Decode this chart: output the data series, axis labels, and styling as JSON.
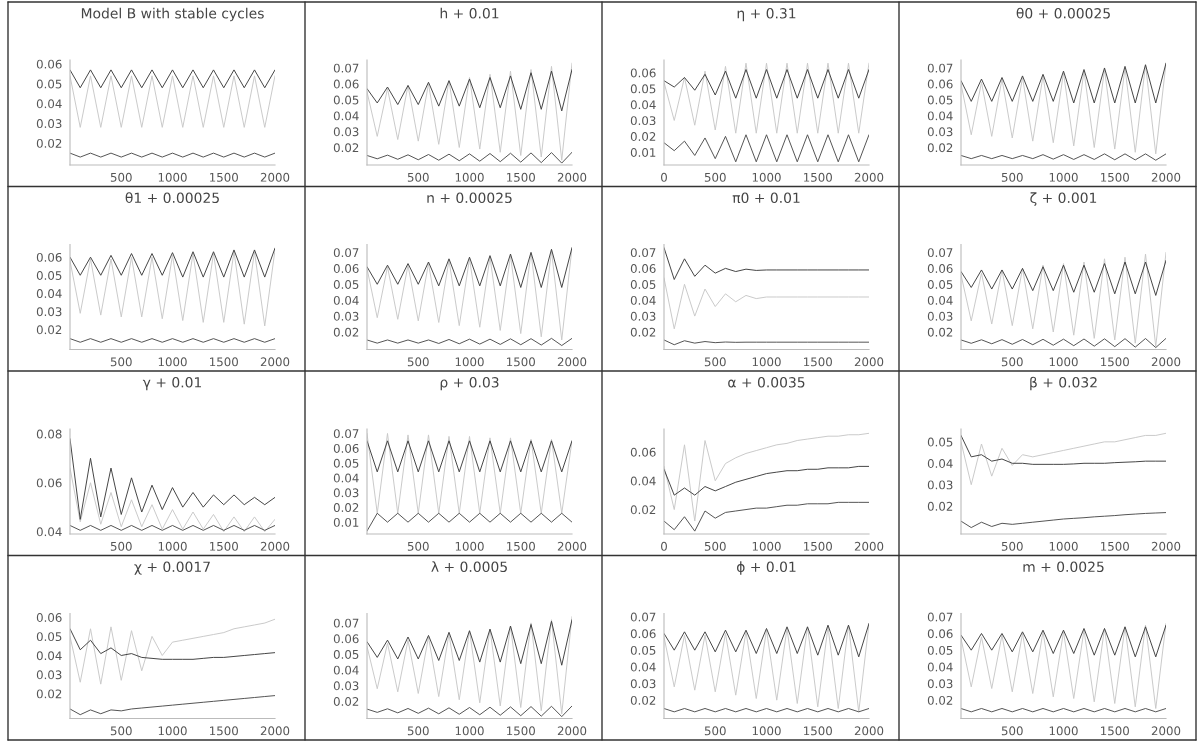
{
  "chart_data": [
    {
      "type": "line",
      "title": "Model B with stable cycles",
      "x": [
        0,
        100,
        200,
        300,
        400,
        500,
        600,
        700,
        800,
        900,
        1000,
        1100,
        1200,
        1300,
        1400,
        1500,
        1600,
        1700,
        1800,
        1900,
        2000
      ],
      "xlim": [
        0,
        2000
      ],
      "ylim": [
        0.009,
        0.062
      ],
      "xticks": [
        500,
        1000,
        1500,
        2000
      ],
      "yticks": [
        0.02,
        0.03,
        0.04,
        0.05,
        0.06
      ],
      "series": [
        {
          "color": "#c8c8c8",
          "values": [
            0.054,
            0.028,
            0.054,
            0.028,
            0.054,
            0.028,
            0.054,
            0.028,
            0.054,
            0.028,
            0.054,
            0.028,
            0.054,
            0.028,
            0.054,
            0.028,
            0.054,
            0.028,
            0.054,
            0.028,
            0.054
          ]
        },
        {
          "color": "#404040",
          "values": [
            0.057,
            0.048,
            0.057,
            0.048,
            0.057,
            0.048,
            0.057,
            0.048,
            0.057,
            0.048,
            0.057,
            0.048,
            0.057,
            0.048,
            0.057,
            0.048,
            0.057,
            0.048,
            0.057,
            0.048,
            0.057
          ]
        },
        {
          "color": "#505050",
          "values": [
            0.015,
            0.013,
            0.015,
            0.013,
            0.015,
            0.013,
            0.015,
            0.013,
            0.015,
            0.013,
            0.015,
            0.013,
            0.015,
            0.013,
            0.015,
            0.013,
            0.015,
            0.013,
            0.015,
            0.013,
            0.015
          ]
        }
      ]
    },
    {
      "type": "line",
      "title": "h + 0.01",
      "x": [
        0,
        100,
        200,
        300,
        400,
        500,
        600,
        700,
        800,
        900,
        1000,
        1100,
        1200,
        1300,
        1400,
        1500,
        1600,
        1700,
        1800,
        1900,
        2000
      ],
      "xlim": [
        0,
        2000
      ],
      "ylim": [
        0.009,
        0.075
      ],
      "xticks": [
        500,
        1000,
        1500,
        2000
      ],
      "yticks": [
        0.02,
        0.03,
        0.04,
        0.05,
        0.06,
        0.07
      ],
      "series": [
        {
          "color": "#c8c8c8",
          "values": [
            0.055,
            0.027,
            0.057,
            0.025,
            0.059,
            0.024,
            0.06,
            0.022,
            0.062,
            0.02,
            0.064,
            0.019,
            0.066,
            0.017,
            0.068,
            0.015,
            0.069,
            0.014,
            0.071,
            0.012,
            0.073
          ]
        },
        {
          "color": "#404040",
          "values": [
            0.057,
            0.048,
            0.058,
            0.047,
            0.059,
            0.047,
            0.061,
            0.046,
            0.062,
            0.046,
            0.063,
            0.045,
            0.064,
            0.045,
            0.065,
            0.044,
            0.067,
            0.044,
            0.068,
            0.043,
            0.069
          ]
        },
        {
          "color": "#505050",
          "values": [
            0.015,
            0.0129,
            0.0152,
            0.0126,
            0.0154,
            0.0123,
            0.0156,
            0.012,
            0.0158,
            0.0117,
            0.016,
            0.0114,
            0.0162,
            0.0111,
            0.0164,
            0.0108,
            0.0166,
            0.0105,
            0.0168,
            0.0102,
            0.017
          ]
        }
      ]
    },
    {
      "type": "line",
      "title": "η + 0.31",
      "x": [
        0,
        100,
        200,
        300,
        400,
        500,
        600,
        700,
        800,
        900,
        1000,
        1100,
        1200,
        1300,
        1400,
        1500,
        1600,
        1700,
        1800,
        1900,
        2000
      ],
      "xlim": [
        0,
        2000
      ],
      "ylim": [
        0.002,
        0.068
      ],
      "xticks": [
        0,
        500,
        1000,
        1500,
        2000
      ],
      "yticks": [
        0.01,
        0.02,
        0.03,
        0.04,
        0.05,
        0.06
      ],
      "series": [
        {
          "color": "#c8c8c8",
          "values": [
            0.054,
            0.03,
            0.057,
            0.027,
            0.061,
            0.024,
            0.064,
            0.022,
            0.066,
            0.022,
            0.066,
            0.022,
            0.066,
            0.022,
            0.066,
            0.022,
            0.066,
            0.022,
            0.066,
            0.022,
            0.066
          ]
        },
        {
          "color": "#404040",
          "values": [
            0.055,
            0.051,
            0.057,
            0.049,
            0.059,
            0.046,
            0.061,
            0.044,
            0.062,
            0.044,
            0.062,
            0.044,
            0.062,
            0.044,
            0.062,
            0.044,
            0.062,
            0.044,
            0.062,
            0.044,
            0.062
          ]
        },
        {
          "color": "#505050",
          "values": [
            0.016,
            0.011,
            0.017,
            0.008,
            0.019,
            0.006,
            0.02,
            0.004,
            0.021,
            0.004,
            0.021,
            0.004,
            0.021,
            0.004,
            0.021,
            0.004,
            0.021,
            0.004,
            0.021,
            0.004,
            0.021
          ]
        }
      ]
    },
    {
      "type": "line",
      "title": "θ0 + 0.00025",
      "x": [
        0,
        100,
        200,
        300,
        400,
        500,
        600,
        700,
        800,
        900,
        1000,
        1100,
        1200,
        1300,
        1400,
        1500,
        1600,
        1700,
        1800,
        1900,
        2000
      ],
      "xlim": [
        0,
        2000
      ],
      "ylim": [
        0.009,
        0.075
      ],
      "xticks": [
        500,
        1000,
        1500,
        2000
      ],
      "yticks": [
        0.02,
        0.03,
        0.04,
        0.05,
        0.06,
        0.07
      ],
      "series": [
        {
          "color": "#c8c8c8",
          "values": [
            0.06,
            0.028,
            0.061,
            0.027,
            0.063,
            0.026,
            0.064,
            0.024,
            0.065,
            0.023,
            0.067,
            0.021,
            0.068,
            0.02,
            0.069,
            0.019,
            0.07,
            0.017,
            0.072,
            0.016,
            0.073
          ]
        },
        {
          "color": "#404040",
          "values": [
            0.062,
            0.049,
            0.063,
            0.049,
            0.064,
            0.049,
            0.065,
            0.049,
            0.066,
            0.049,
            0.068,
            0.048,
            0.069,
            0.048,
            0.07,
            0.048,
            0.071,
            0.048,
            0.072,
            0.048,
            0.073
          ]
        },
        {
          "color": "#505050",
          "values": [
            0.015,
            0.013,
            0.015,
            0.013,
            0.015,
            0.013,
            0.015,
            0.013,
            0.0155,
            0.0127,
            0.0155,
            0.0125,
            0.0155,
            0.0125,
            0.016,
            0.0123,
            0.016,
            0.0122,
            0.016,
            0.012,
            0.016
          ]
        }
      ]
    },
    {
      "type": "line",
      "title": "θ1 + 0.00025",
      "x": [
        0,
        100,
        200,
        300,
        400,
        500,
        600,
        700,
        800,
        900,
        1000,
        1100,
        1200,
        1300,
        1400,
        1500,
        1600,
        1700,
        1800,
        1900,
        2000
      ],
      "xlim": [
        0,
        2000
      ],
      "ylim": [
        0.009,
        0.067
      ],
      "xticks": [
        500,
        1000,
        1500,
        2000
      ],
      "yticks": [
        0.02,
        0.03,
        0.04,
        0.05,
        0.06
      ],
      "series": [
        {
          "color": "#c8c8c8",
          "values": [
            0.058,
            0.029,
            0.059,
            0.028,
            0.059,
            0.027,
            0.06,
            0.027,
            0.06,
            0.026,
            0.061,
            0.025,
            0.062,
            0.024,
            0.062,
            0.024,
            0.063,
            0.023,
            0.063,
            0.022,
            0.064
          ]
        },
        {
          "color": "#404040",
          "values": [
            0.06,
            0.05,
            0.06,
            0.05,
            0.061,
            0.05,
            0.062,
            0.05,
            0.062,
            0.05,
            0.0625,
            0.049,
            0.063,
            0.049,
            0.063,
            0.049,
            0.064,
            0.049,
            0.064,
            0.049,
            0.065
          ]
        },
        {
          "color": "#505050",
          "values": [
            0.015,
            0.013,
            0.015,
            0.013,
            0.015,
            0.013,
            0.015,
            0.013,
            0.015,
            0.013,
            0.015,
            0.013,
            0.015,
            0.013,
            0.015,
            0.013,
            0.015,
            0.013,
            0.015,
            0.013,
            0.015
          ]
        }
      ]
    },
    {
      "type": "line",
      "title": "n + 0.00025",
      "x": [
        0,
        100,
        200,
        300,
        400,
        500,
        600,
        700,
        800,
        900,
        1000,
        1100,
        1200,
        1300,
        1400,
        1500,
        1600,
        1700,
        1800,
        1900,
        2000
      ],
      "xlim": [
        0,
        2000
      ],
      "ylim": [
        0.009,
        0.075
      ],
      "xticks": [
        500,
        1000,
        1500,
        2000
      ],
      "yticks": [
        0.02,
        0.03,
        0.04,
        0.05,
        0.06,
        0.07
      ],
      "series": [
        {
          "color": "#c8c8c8",
          "values": [
            0.06,
            0.029,
            0.061,
            0.028,
            0.062,
            0.027,
            0.063,
            0.026,
            0.065,
            0.024,
            0.066,
            0.023,
            0.067,
            0.021,
            0.068,
            0.019,
            0.07,
            0.017,
            0.071,
            0.015,
            0.073
          ]
        },
        {
          "color": "#404040",
          "values": [
            0.061,
            0.05,
            0.062,
            0.05,
            0.063,
            0.05,
            0.064,
            0.049,
            0.066,
            0.049,
            0.067,
            0.049,
            0.068,
            0.049,
            0.069,
            0.048,
            0.07,
            0.048,
            0.072,
            0.048,
            0.073
          ]
        },
        {
          "color": "#505050",
          "values": [
            0.015,
            0.013,
            0.015,
            0.013,
            0.015,
            0.013,
            0.015,
            0.0128,
            0.0153,
            0.0126,
            0.0155,
            0.0124,
            0.0155,
            0.0122,
            0.0157,
            0.012,
            0.0158,
            0.0118,
            0.016,
            0.0115,
            0.016
          ]
        }
      ]
    },
    {
      "type": "line",
      "title": "π0 + 0.01",
      "x": [
        0,
        100,
        200,
        300,
        400,
        500,
        600,
        700,
        800,
        900,
        1000,
        1100,
        1200,
        1300,
        1400,
        1500,
        1600,
        1700,
        1800,
        1900,
        2000
      ],
      "xlim": [
        0,
        2000
      ],
      "ylim": [
        0.009,
        0.075
      ],
      "xticks": [
        500,
        1000,
        1500,
        2000
      ],
      "yticks": [
        0.02,
        0.03,
        0.04,
        0.05,
        0.06,
        0.07
      ],
      "series": [
        {
          "color": "#c8c8c8",
          "values": [
            0.054,
            0.022,
            0.05,
            0.03,
            0.047,
            0.036,
            0.044,
            0.039,
            0.043,
            0.041,
            0.042,
            0.042,
            0.042,
            0.042,
            0.042,
            0.042,
            0.042,
            0.042,
            0.042,
            0.042,
            0.042
          ]
        },
        {
          "color": "#404040",
          "values": [
            0.073,
            0.053,
            0.066,
            0.055,
            0.062,
            0.057,
            0.06,
            0.058,
            0.0595,
            0.0587,
            0.059,
            0.059,
            0.059,
            0.059,
            0.059,
            0.059,
            0.059,
            0.059,
            0.059,
            0.059,
            0.059
          ]
        },
        {
          "color": "#505050",
          "values": [
            0.015,
            0.012,
            0.0145,
            0.013,
            0.014,
            0.0133,
            0.0137,
            0.0135,
            0.0136,
            0.0136,
            0.0136,
            0.0136,
            0.0136,
            0.0136,
            0.0136,
            0.0136,
            0.0136,
            0.0136,
            0.0136,
            0.0136,
            0.0136
          ]
        }
      ]
    },
    {
      "type": "line",
      "title": "ζ + 0.001",
      "x": [
        0,
        100,
        200,
        300,
        400,
        500,
        600,
        700,
        800,
        900,
        1000,
        1100,
        1200,
        1300,
        1400,
        1500,
        1600,
        1700,
        1800,
        1900,
        2000
      ],
      "xlim": [
        0,
        2000
      ],
      "ylim": [
        0.009,
        0.075
      ],
      "xticks": [
        500,
        1000,
        1500,
        2000
      ],
      "yticks": [
        0.02,
        0.03,
        0.04,
        0.05,
        0.06,
        0.07
      ],
      "series": [
        {
          "color": "#c8c8c8",
          "values": [
            0.056,
            0.027,
            0.057,
            0.025,
            0.059,
            0.024,
            0.06,
            0.022,
            0.062,
            0.02,
            0.063,
            0.018,
            0.064,
            0.016,
            0.066,
            0.015,
            0.067,
            0.013,
            0.069,
            0.011,
            0.07
          ]
        },
        {
          "color": "#404040",
          "values": [
            0.058,
            0.048,
            0.059,
            0.047,
            0.059,
            0.047,
            0.06,
            0.046,
            0.061,
            0.046,
            0.062,
            0.045,
            0.062,
            0.045,
            0.063,
            0.044,
            0.064,
            0.044,
            0.064,
            0.043,
            0.065
          ]
        },
        {
          "color": "#505050",
          "values": [
            0.015,
            0.0129,
            0.0151,
            0.0126,
            0.0152,
            0.0123,
            0.0153,
            0.012,
            0.0154,
            0.0117,
            0.0155,
            0.0114,
            0.0156,
            0.0111,
            0.0157,
            0.0108,
            0.0158,
            0.0105,
            0.0159,
            0.0102,
            0.016
          ]
        }
      ]
    },
    {
      "type": "line",
      "title": "γ + 0.01",
      "x": [
        0,
        100,
        200,
        300,
        400,
        500,
        600,
        700,
        800,
        900,
        1000,
        1100,
        1200,
        1300,
        1400,
        1500,
        1600,
        1700,
        1800,
        1900,
        2000
      ],
      "xlim": [
        0,
        2000
      ],
      "ylim": [
        0.039,
        0.082
      ],
      "xticks": [
        500,
        1000,
        1500,
        2000
      ],
      "yticks": [
        0.04,
        0.06,
        0.08
      ],
      "series": [
        {
          "color": "#c8c8c8",
          "values": [
            0.066,
            0.044,
            0.06,
            0.043,
            0.056,
            0.042,
            0.053,
            0.042,
            0.051,
            0.041,
            0.049,
            0.041,
            0.048,
            0.041,
            0.047,
            0.04,
            0.046,
            0.04,
            0.046,
            0.04,
            0.045
          ]
        },
        {
          "color": "#404040",
          "values": [
            0.078,
            0.045,
            0.07,
            0.046,
            0.066,
            0.047,
            0.062,
            0.048,
            0.059,
            0.049,
            0.058,
            0.05,
            0.056,
            0.05,
            0.055,
            0.051,
            0.055,
            0.051,
            0.054,
            0.051,
            0.054
          ]
        },
        {
          "color": "#505050",
          "values": [
            0.0425,
            0.0405,
            0.0425,
            0.0405,
            0.0425,
            0.0405,
            0.0425,
            0.0405,
            0.0425,
            0.0405,
            0.0425,
            0.0405,
            0.0425,
            0.0405,
            0.0425,
            0.0405,
            0.0425,
            0.0405,
            0.0425,
            0.0405,
            0.0425
          ]
        }
      ]
    },
    {
      "type": "line",
      "title": "ρ + 0.03",
      "x": [
        0,
        100,
        200,
        300,
        400,
        500,
        600,
        700,
        800,
        900,
        1000,
        1100,
        1200,
        1300,
        1400,
        1500,
        1600,
        1700,
        1800,
        1900,
        2000
      ],
      "xlim": [
        0,
        2000
      ],
      "ylim": [
        0.002,
        0.073
      ],
      "xticks": [
        500,
        1000,
        1500,
        2000
      ],
      "yticks": [
        0.01,
        0.02,
        0.03,
        0.04,
        0.05,
        0.06,
        0.07
      ],
      "series": [
        {
          "color": "#c8c8c8",
          "values": [
            0.07,
            0.016,
            0.07,
            0.016,
            0.069,
            0.016,
            0.069,
            0.016,
            0.068,
            0.016,
            0.068,
            0.016,
            0.067,
            0.016,
            0.067,
            0.016,
            0.066,
            0.016,
            0.066,
            0.016,
            0.065
          ]
        },
        {
          "color": "#404040",
          "values": [
            0.065,
            0.044,
            0.065,
            0.044,
            0.065,
            0.044,
            0.065,
            0.044,
            0.065,
            0.044,
            0.065,
            0.044,
            0.065,
            0.044,
            0.065,
            0.044,
            0.065,
            0.044,
            0.065,
            0.044,
            0.065
          ]
        },
        {
          "color": "#505050",
          "values": [
            0.004,
            0.016,
            0.01,
            0.016,
            0.01,
            0.016,
            0.01,
            0.016,
            0.01,
            0.016,
            0.01,
            0.016,
            0.01,
            0.016,
            0.01,
            0.016,
            0.01,
            0.016,
            0.01,
            0.016,
            0.01
          ]
        }
      ]
    },
    {
      "type": "line",
      "title": "α + 0.0035",
      "x": [
        0,
        100,
        200,
        300,
        400,
        500,
        600,
        700,
        800,
        900,
        1000,
        1100,
        1200,
        1300,
        1400,
        1500,
        1600,
        1700,
        1800,
        1900,
        2000
      ],
      "xlim": [
        0,
        2000
      ],
      "ylim": [
        0.003,
        0.076
      ],
      "xticks": [
        0,
        500,
        1000,
        1500,
        2000
      ],
      "yticks": [
        0.02,
        0.04,
        0.06
      ],
      "series": [
        {
          "color": "#c8c8c8",
          "values": [
            0.05,
            0.02,
            0.065,
            0.012,
            0.068,
            0.04,
            0.052,
            0.056,
            0.059,
            0.061,
            0.063,
            0.065,
            0.066,
            0.068,
            0.069,
            0.07,
            0.071,
            0.071,
            0.072,
            0.072,
            0.073
          ]
        },
        {
          "color": "#404040",
          "values": [
            0.048,
            0.03,
            0.035,
            0.03,
            0.036,
            0.033,
            0.036,
            0.039,
            0.041,
            0.043,
            0.045,
            0.046,
            0.047,
            0.047,
            0.048,
            0.048,
            0.049,
            0.049,
            0.049,
            0.05,
            0.05
          ]
        },
        {
          "color": "#505050",
          "values": [
            0.012,
            0.006,
            0.015,
            0.005,
            0.019,
            0.014,
            0.018,
            0.019,
            0.02,
            0.021,
            0.021,
            0.022,
            0.023,
            0.023,
            0.024,
            0.024,
            0.024,
            0.025,
            0.025,
            0.025,
            0.025
          ]
        }
      ]
    },
    {
      "type": "line",
      "title": "β + 0.032",
      "x": [
        0,
        100,
        200,
        300,
        400,
        500,
        600,
        700,
        800,
        900,
        1000,
        1100,
        1200,
        1300,
        1400,
        1500,
        1600,
        1700,
        1800,
        1900,
        2000
      ],
      "xlim": [
        0,
        2000
      ],
      "ylim": [
        0.007,
        0.056
      ],
      "xticks": [
        500,
        1000,
        1500,
        2000
      ],
      "yticks": [
        0.02,
        0.03,
        0.04,
        0.05
      ],
      "series": [
        {
          "color": "#c8c8c8",
          "values": [
            0.05,
            0.03,
            0.049,
            0.034,
            0.047,
            0.039,
            0.044,
            0.043,
            0.044,
            0.045,
            0.046,
            0.047,
            0.048,
            0.049,
            0.05,
            0.05,
            0.051,
            0.052,
            0.053,
            0.053,
            0.054
          ]
        },
        {
          "color": "#404040",
          "values": [
            0.053,
            0.043,
            0.044,
            0.041,
            0.042,
            0.04,
            0.04,
            0.0395,
            0.0395,
            0.0395,
            0.0395,
            0.0397,
            0.04,
            0.04,
            0.04,
            0.0403,
            0.0405,
            0.0407,
            0.041,
            0.041,
            0.041
          ]
        },
        {
          "color": "#505050",
          "values": [
            0.013,
            0.01,
            0.0125,
            0.0105,
            0.012,
            0.0115,
            0.012,
            0.0125,
            0.013,
            0.0135,
            0.014,
            0.0143,
            0.0146,
            0.015,
            0.0153,
            0.0156,
            0.016,
            0.0163,
            0.0166,
            0.0168,
            0.017
          ]
        }
      ]
    },
    {
      "type": "line",
      "title": "χ + 0.0017",
      "x": [
        0,
        100,
        200,
        300,
        400,
        500,
        600,
        700,
        800,
        900,
        1000,
        1100,
        1200,
        1300,
        1400,
        1500,
        1600,
        1700,
        1800,
        1900,
        2000
      ],
      "xlim": [
        0,
        2000
      ],
      "ylim": [
        0.007,
        0.062
      ],
      "xticks": [
        500,
        1000,
        1500,
        2000
      ],
      "yticks": [
        0.02,
        0.03,
        0.04,
        0.05,
        0.06
      ],
      "series": [
        {
          "color": "#c8c8c8",
          "values": [
            0.05,
            0.026,
            0.054,
            0.025,
            0.055,
            0.027,
            0.053,
            0.032,
            0.05,
            0.04,
            0.047,
            0.048,
            0.049,
            0.05,
            0.051,
            0.052,
            0.054,
            0.055,
            0.056,
            0.057,
            0.059
          ]
        },
        {
          "color": "#404040",
          "values": [
            0.054,
            0.043,
            0.048,
            0.041,
            0.044,
            0.04,
            0.041,
            0.039,
            0.0385,
            0.038,
            0.038,
            0.038,
            0.038,
            0.0385,
            0.039,
            0.039,
            0.0395,
            0.04,
            0.0405,
            0.041,
            0.0415
          ]
        },
        {
          "color": "#505050",
          "values": [
            0.012,
            0.009,
            0.0115,
            0.0095,
            0.0115,
            0.011,
            0.012,
            0.0125,
            0.013,
            0.0135,
            0.014,
            0.0145,
            0.015,
            0.0155,
            0.016,
            0.0165,
            0.017,
            0.0175,
            0.018,
            0.0185,
            0.019
          ]
        }
      ]
    },
    {
      "type": "line",
      "title": "λ + 0.0005",
      "x": [
        0,
        100,
        200,
        300,
        400,
        500,
        600,
        700,
        800,
        900,
        1000,
        1100,
        1200,
        1300,
        1400,
        1500,
        1600,
        1700,
        1800,
        1900,
        2000
      ],
      "xlim": [
        0,
        2000
      ],
      "ylim": [
        0.009,
        0.076
      ],
      "xticks": [
        500,
        1000,
        1500,
        2000
      ],
      "yticks": [
        0.02,
        0.03,
        0.04,
        0.05,
        0.06,
        0.07
      ],
      "series": [
        {
          "color": "#c8c8c8",
          "values": [
            0.055,
            0.028,
            0.057,
            0.026,
            0.059,
            0.025,
            0.061,
            0.023,
            0.063,
            0.021,
            0.065,
            0.019,
            0.066,
            0.017,
            0.068,
            0.016,
            0.07,
            0.014,
            0.072,
            0.012,
            0.074
          ]
        },
        {
          "color": "#404040",
          "values": [
            0.058,
            0.048,
            0.059,
            0.047,
            0.061,
            0.047,
            0.062,
            0.046,
            0.064,
            0.046,
            0.065,
            0.045,
            0.066,
            0.045,
            0.068,
            0.044,
            0.069,
            0.044,
            0.071,
            0.043,
            0.072
          ]
        },
        {
          "color": "#505050",
          "values": [
            0.015,
            0.0129,
            0.0152,
            0.0126,
            0.0154,
            0.0123,
            0.0156,
            0.012,
            0.0158,
            0.0117,
            0.016,
            0.0114,
            0.0162,
            0.0111,
            0.0164,
            0.0108,
            0.0166,
            0.0105,
            0.0168,
            0.0102,
            0.017
          ]
        }
      ]
    },
    {
      "type": "line",
      "title": "ϕ + 0.01",
      "x": [
        0,
        100,
        200,
        300,
        400,
        500,
        600,
        700,
        800,
        900,
        1000,
        1100,
        1200,
        1300,
        1400,
        1500,
        1600,
        1700,
        1800,
        1900,
        2000
      ],
      "xlim": [
        0,
        2000
      ],
      "ylim": [
        0.009,
        0.072
      ],
      "xticks": [
        500,
        1000,
        1500,
        2000
      ],
      "yticks": [
        0.02,
        0.03,
        0.04,
        0.05,
        0.06,
        0.07
      ],
      "series": [
        {
          "color": "#c8c8c8",
          "values": [
            0.058,
            0.028,
            0.059,
            0.026,
            0.059,
            0.025,
            0.06,
            0.023,
            0.061,
            0.021,
            0.062,
            0.02,
            0.063,
            0.018,
            0.064,
            0.016,
            0.064,
            0.015,
            0.065,
            0.013,
            0.066
          ]
        },
        {
          "color": "#404040",
          "values": [
            0.06,
            0.05,
            0.061,
            0.05,
            0.061,
            0.049,
            0.062,
            0.049,
            0.062,
            0.048,
            0.063,
            0.048,
            0.064,
            0.048,
            0.064,
            0.047,
            0.065,
            0.047,
            0.065,
            0.046,
            0.066
          ]
        },
        {
          "color": "#505050",
          "values": [
            0.015,
            0.013,
            0.015,
            0.013,
            0.015,
            0.013,
            0.015,
            0.013,
            0.015,
            0.013,
            0.015,
            0.013,
            0.015,
            0.013,
            0.015,
            0.013,
            0.015,
            0.013,
            0.015,
            0.013,
            0.015
          ]
        }
      ]
    },
    {
      "type": "line",
      "title": "m + 0.0025",
      "x": [
        0,
        100,
        200,
        300,
        400,
        500,
        600,
        700,
        800,
        900,
        1000,
        1100,
        1200,
        1300,
        1400,
        1500,
        1600,
        1700,
        1800,
        1900,
        2000
      ],
      "xlim": [
        0,
        2000
      ],
      "ylim": [
        0.009,
        0.072
      ],
      "xticks": [
        500,
        1000,
        1500,
        2000
      ],
      "yticks": [
        0.02,
        0.03,
        0.04,
        0.05,
        0.06,
        0.07
      ],
      "series": [
        {
          "color": "#c8c8c8",
          "values": [
            0.057,
            0.028,
            0.058,
            0.027,
            0.059,
            0.025,
            0.06,
            0.024,
            0.061,
            0.022,
            0.061,
            0.021,
            0.062,
            0.019,
            0.063,
            0.018,
            0.064,
            0.016,
            0.065,
            0.015,
            0.066
          ]
        },
        {
          "color": "#404040",
          "values": [
            0.059,
            0.05,
            0.06,
            0.05,
            0.06,
            0.049,
            0.061,
            0.049,
            0.062,
            0.048,
            0.062,
            0.048,
            0.063,
            0.047,
            0.063,
            0.047,
            0.064,
            0.046,
            0.064,
            0.046,
            0.065
          ]
        },
        {
          "color": "#505050",
          "values": [
            0.015,
            0.013,
            0.015,
            0.013,
            0.015,
            0.013,
            0.015,
            0.013,
            0.015,
            0.013,
            0.015,
            0.013,
            0.015,
            0.013,
            0.015,
            0.013,
            0.015,
            0.013,
            0.015,
            0.013,
            0.015
          ]
        }
      ]
    }
  ]
}
